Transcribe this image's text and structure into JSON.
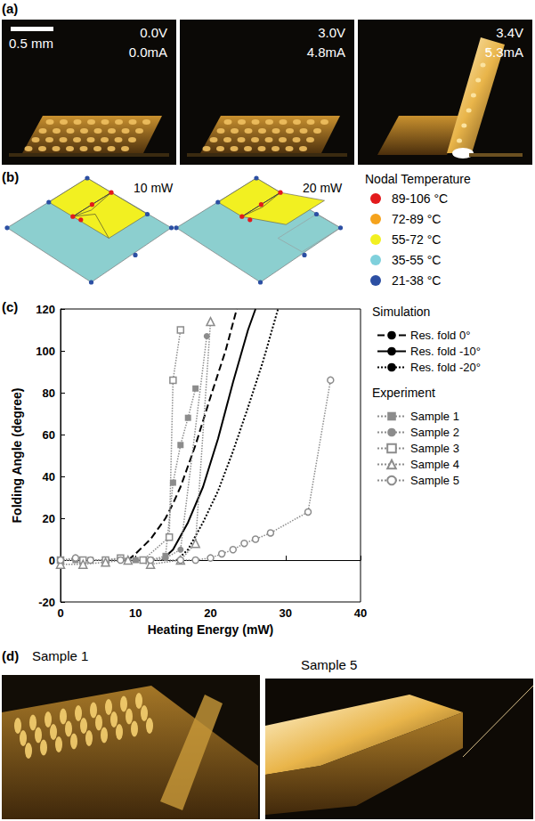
{
  "panel_a": {
    "panel_label": "(a)",
    "scale_bar": "0.5 mm",
    "frames": [
      {
        "voltage": "0.0V",
        "current": "0.0mA"
      },
      {
        "voltage": "3.0V",
        "current": "4.8mA"
      },
      {
        "voltage": "3.4V",
        "current": "5.3mA"
      }
    ]
  },
  "panel_b": {
    "panel_label": "(b)",
    "diagrams": [
      "10 mW",
      "20 mW"
    ],
    "legend_title": "Nodal Temperature",
    "legend": [
      {
        "label": "89-106 °C",
        "color": "#e31a1c"
      },
      {
        "label": "72-89 °C",
        "color": "#f5a31c"
      },
      {
        "label": "55-72 °C",
        "color": "#f2f021"
      },
      {
        "label": "35-55 °C",
        "color": "#7fd0dc"
      },
      {
        "label": "21-38 °C",
        "color": "#2c4fa3"
      }
    ]
  },
  "chart_data": {
    "panel_label": "(c)",
    "type": "line",
    "x_label": "Heating Energy (mW)",
    "y_label": "Folding Angle (degree)",
    "xlim": [
      0,
      40
    ],
    "xticks": [
      0,
      10,
      20,
      30,
      40
    ],
    "ylim": [
      -20,
      120
    ],
    "yticks": [
      -20,
      0,
      20,
      40,
      60,
      80,
      100,
      120
    ],
    "grid": false,
    "legend": "right",
    "groups": [
      {
        "name": "Simulation",
        "series": [
          {
            "name": "Res. fold 0°",
            "color": "#000000",
            "line_style": "dashed",
            "marker": "none",
            "x": [
              9,
              10,
              12,
              14,
              15,
              16,
              18,
              20,
              22,
              23.5
            ],
            "values": [
              0,
              3,
              10,
              20,
              27,
              35,
              55,
              78,
              100,
              120
            ]
          },
          {
            "name": "Res. fold -10°",
            "color": "#000000",
            "line_style": "solid",
            "marker": "none",
            "x": [
              13.5,
              15,
              17,
              19,
              21,
              23,
              25,
              26
            ],
            "values": [
              0,
              5,
              18,
              35,
              58,
              85,
              110,
              120
            ]
          },
          {
            "name": "Res. fold -20°",
            "color": "#000000",
            "line_style": "dotted",
            "marker": "none",
            "x": [
              15.5,
              17,
              19,
              21,
              23,
              25,
              27,
              29
            ],
            "values": [
              0,
              5,
              18,
              33,
              52,
              73,
              95,
              120
            ]
          }
        ]
      },
      {
        "name": "Experiment",
        "series": [
          {
            "name": "Sample 1",
            "color": "#8c8c8c",
            "line_style": "dotted",
            "marker": "square",
            "x": [
              0,
              2,
              4,
              6,
              8,
              10,
              12,
              14,
              15,
              16,
              17,
              18
            ],
            "values": [
              0,
              0,
              0,
              0,
              1,
              0,
              0,
              2,
              37,
              55,
              68,
              82
            ]
          },
          {
            "name": "Sample 2",
            "color": "#8c8c8c",
            "line_style": "dotted",
            "marker": "circle",
            "x": [
              0,
              3,
              6,
              9,
              12,
              14,
              16,
              19.5
            ],
            "values": [
              0,
              0,
              0,
              0,
              0,
              1,
              5,
              107
            ]
          },
          {
            "name": "Sample 3",
            "color": "#8c8c8c",
            "line_style": "dotted",
            "marker": "open square",
            "x": [
              0,
              3,
              6,
              8,
              11,
              14.5,
              15,
              16
            ],
            "values": [
              0,
              0,
              0,
              1,
              0,
              11,
              86,
              110
            ]
          },
          {
            "name": "Sample 4",
            "color": "#8c8c8c",
            "line_style": "dotted",
            "marker": "open triangle",
            "x": [
              0,
              3,
              6,
              9,
              12,
              16,
              18,
              20
            ],
            "values": [
              -2,
              -2,
              -1,
              0,
              -2,
              0,
              8,
              114
            ]
          },
          {
            "name": "Sample 5",
            "color": "#8c8c8c",
            "line_style": "dotted",
            "marker": "open circle",
            "x": [
              0,
              2,
              4,
              8,
              12,
              16,
              18,
              20,
              21.5,
              23,
              24.5,
              26,
              28,
              33,
              36
            ],
            "values": [
              0,
              1,
              0,
              0,
              0,
              0,
              0,
              1,
              3,
              5,
              8,
              10,
              13,
              23,
              86
            ]
          }
        ]
      }
    ]
  },
  "panel_d": {
    "panel_label": "(d)",
    "frames": [
      "Sample 1",
      "Sample 5"
    ]
  }
}
